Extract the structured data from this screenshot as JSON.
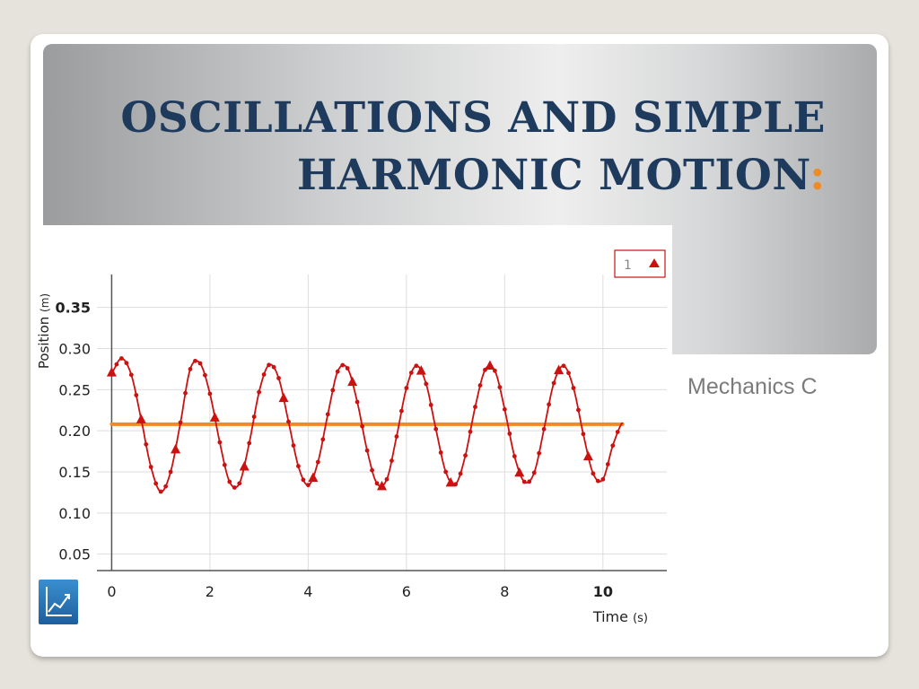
{
  "slide": {
    "title_line1": "Oscillations and Simple",
    "title_line2": "Harmonic Motion",
    "title_colon": ":",
    "subtitle": "Mechanics C"
  },
  "colors": {
    "series": "#cc1111",
    "equilibrium": "#ef8a28",
    "title": "#1e3a5c",
    "accent": "#f08a24"
  },
  "chart_data": {
    "type": "line",
    "xlabel": "Time",
    "xunit": "(s)",
    "ylabel": "Position",
    "yunit": "(m)",
    "xlim": [
      -0.3,
      11.3
    ],
    "ylim": [
      0.03,
      0.39
    ],
    "xticks": [
      "0",
      "2",
      "4",
      "6",
      "8",
      "10"
    ],
    "yticks": [
      "0.05",
      "0.10",
      "0.15",
      "0.20",
      "0.25",
      "0.30",
      "0.35"
    ],
    "grid": true,
    "legend": {
      "position": "top-right",
      "entries": [
        "1"
      ]
    },
    "equilibrium": {
      "y": 0.208,
      "x_start": 0,
      "x_end": 10.4
    },
    "series": [
      {
        "marker": "triangle",
        "x": [
          0.0,
          0.2,
          0.4,
          0.6,
          0.8,
          1.0,
          1.2,
          1.4,
          1.6,
          1.8,
          2.0,
          2.2,
          2.4,
          2.6,
          2.8,
          3.0,
          3.2,
          3.4,
          3.6,
          3.8,
          4.0,
          4.2,
          4.4,
          4.6,
          4.8,
          5.0,
          5.2,
          5.4,
          5.6,
          5.8,
          6.0,
          6.2,
          6.4,
          6.6,
          6.8,
          7.0,
          7.2,
          7.4,
          7.6,
          7.8,
          8.0,
          8.2,
          8.4,
          8.6,
          8.8,
          9.0,
          9.2,
          9.4,
          9.6,
          9.8,
          10.0,
          10.2,
          10.4
        ],
        "y": [
          0.271,
          0.288,
          0.268,
          0.214,
          0.156,
          0.126,
          0.15,
          0.21,
          0.275,
          0.282,
          0.245,
          0.186,
          0.138,
          0.136,
          0.185,
          0.247,
          0.28,
          0.264,
          0.211,
          0.157,
          0.134,
          0.162,
          0.22,
          0.272,
          0.276,
          0.235,
          0.176,
          0.136,
          0.141,
          0.193,
          0.252,
          0.279,
          0.257,
          0.202,
          0.15,
          0.135,
          0.17,
          0.229,
          0.274,
          0.273,
          0.226,
          0.169,
          0.138,
          0.149,
          0.202,
          0.258,
          0.279,
          0.252,
          0.196,
          0.148,
          0.141,
          0.182,
          0.21
        ],
        "triangle_marks_x": [
          0.0,
          0.6,
          1.3,
          2.1,
          2.7,
          3.5,
          4.1,
          4.9,
          5.5,
          6.3,
          6.9,
          7.7,
          8.3,
          9.1,
          9.7
        ]
      }
    ]
  }
}
